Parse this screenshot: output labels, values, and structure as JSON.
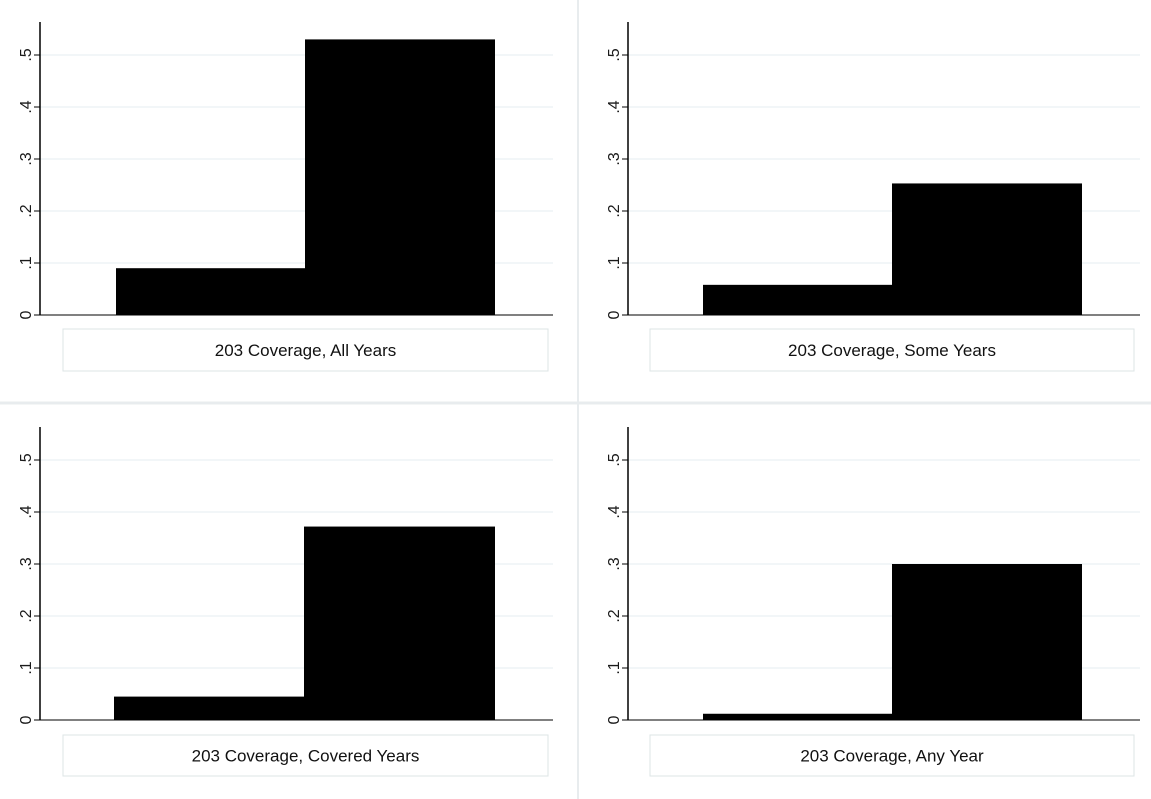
{
  "chart_data": [
    {
      "type": "bar",
      "caption": "203 Coverage, All Years",
      "values": [
        0.09,
        0.53
      ],
      "ylim": [
        0,
        0.56
      ],
      "yticks": [
        0,
        0.1,
        0.2,
        0.3,
        0.4,
        0.5
      ],
      "ytick_labels": [
        "0",
        ".1",
        ".2",
        ".3",
        ".4",
        ".5"
      ],
      "grid": true,
      "bar_color": "#000000"
    },
    {
      "type": "bar",
      "caption": "203 Coverage, Some Years",
      "values": [
        0.058,
        0.253
      ],
      "ylim": [
        0,
        0.56
      ],
      "yticks": [
        0,
        0.1,
        0.2,
        0.3,
        0.4,
        0.5
      ],
      "ytick_labels": [
        "0",
        ".1",
        ".2",
        ".3",
        ".4",
        ".5"
      ],
      "grid": true,
      "bar_color": "#000000"
    },
    {
      "type": "bar",
      "caption": "203 Coverage, Covered Years",
      "values": [
        0.045,
        0.372
      ],
      "ylim": [
        0,
        0.56
      ],
      "yticks": [
        0,
        0.1,
        0.2,
        0.3,
        0.4,
        0.5
      ],
      "ytick_labels": [
        "0",
        ".1",
        ".2",
        ".3",
        ".4",
        ".5"
      ],
      "grid": true,
      "bar_color": "#000000"
    },
    {
      "type": "bar",
      "caption": "203 Coverage, Any Year",
      "values": [
        0.012,
        0.3
      ],
      "ylim": [
        0,
        0.56
      ],
      "yticks": [
        0,
        0.1,
        0.2,
        0.3,
        0.4,
        0.5
      ],
      "ytick_labels": [
        "0",
        ".1",
        ".2",
        ".3",
        ".4",
        ".5"
      ],
      "grid": true,
      "bar_color": "#000000"
    }
  ],
  "colors": {
    "background": "#ffffff",
    "grid": "#e6eef0",
    "axis": "#000000",
    "caption_border": "#dde4e6",
    "panel_divider": "#e8ecee"
  }
}
